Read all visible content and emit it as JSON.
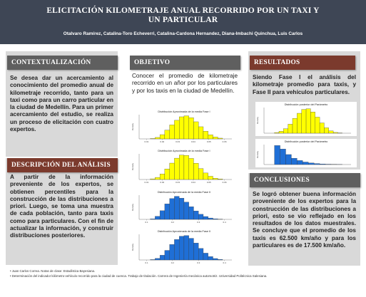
{
  "header": {
    "title": "ELICITACIÓN KILOMETRAJE ANUAL RECORRIDO POR UN TAXI Y UN PARTICULAR",
    "authors": "Otalvaro Ramírez, Catalina-Toro Echeverri, Catalina-Cardona Hernandez, Diana-Imbachi Quinchua, Luis Carlos"
  },
  "sections": {
    "contextualizacion": {
      "heading": "CONTEXTUALIZACIÓN",
      "body": "Se desea dar un acercamiento al conocimiento del promedio anual de kilometraje recorrido, tanto para un taxi como para un carro particular en la ciudad de Medellín. Para un primer acercamiento del estudio, se realiza un proceso de elicitación con cuatro expertos."
    },
    "descripcion": {
      "heading": "DESCRIPCIÓN DEL ANÁLISIS",
      "body": "A partir de la información preveniente de los expertos, se obtienen percentiles para la construcción de las distribuciones a priori. Luego, se toma una muestra de cada población, tanto para taxis como para particulares. Con el fin de actualizar la información, y construir distribuciones posteriores."
    },
    "objetivo": {
      "heading": "OBJETIVO",
      "body": "Conocer el promedio de kilometraje recorrido en un añor por los particulares y por los taxis en la ciudad de Medellín."
    },
    "resultados": {
      "heading": "RESULTADOS",
      "body": "Siendo Fase I el análisis del kilometraje promedio para taxis, y Fase II para vehículos particulares."
    },
    "conclusiones": {
      "heading": "CONCLUSIONES",
      "body": "Se logró obtener buena información proveniente de los expertos para la construcción de las distribuciones a priori, esto se vio reflejado en los resultados de los datos muestrales. Se concluye que el promedio de los taxis es 62.500 km/año y para los particulares es de 17.500 km/año."
    }
  },
  "references": [
    "Juan Carlos Correa. Notas de clase: Estadística Bayesiana.",
    "Determinación del indicador kilómetro-vehículo recorrido para la ciudad de cuenca. Trabajo de titulación. Carrera de Ingeniería mecánica automotriz. Universidad Politécnica Salesiana."
  ],
  "colors": {
    "header_bg": "#3e4655",
    "heading_gray": "#5f5f5f",
    "heading_brown": "#7b3a2d",
    "panel_bg": "#d9d9d9",
    "yellow_bars": "#ffff00",
    "blue_bars": "#1f6fd6"
  },
  "chart_data": [
    {
      "type": "bar",
      "title": "Distribución Aproximada de la media Fase I",
      "ylabel": "Density",
      "xlabel": "",
      "color": "yellow",
      "tick_labels": [
        "0.01",
        "0.02",
        "0.03",
        "0.04",
        "0.05",
        "0.06"
      ],
      "values": [
        0.3,
        1.2,
        3.5,
        7.2,
        11.5,
        15.3,
        18.2,
        19.0,
        17.4,
        14.1,
        10.0,
        6.3,
        3.4,
        1.6,
        0.6
      ]
    },
    {
      "type": "bar",
      "title": "Distribución Aproximada de la media Fase I",
      "ylabel": "Density",
      "xlabel": "",
      "color": "yellow",
      "tick_labels": [
        "0.01",
        "0.02",
        "0.03",
        "0.04",
        "0.05",
        "0.06"
      ],
      "values": [
        0.5,
        1.6,
        4.2,
        8.1,
        12.6,
        16.4,
        18.8,
        18.5,
        16.2,
        12.5,
        8.4,
        5.0,
        2.5,
        1.0,
        0.4
      ]
    },
    {
      "type": "bar",
      "title": "Distribución Aproximada de la media Fase II",
      "ylabel": "Density",
      "xlabel": "",
      "color": "blue",
      "tick_labels": [
        "0.1",
        "0.2",
        "0.3",
        "0.4"
      ],
      "values": [
        0.4,
        2.5,
        7.0,
        12.5,
        16.8,
        18.6,
        17.1,
        13.9,
        10.2,
        6.8,
        4.1,
        2.3,
        1.1,
        0.5,
        0.2
      ]
    },
    {
      "type": "bar",
      "title": "Distribución Aproximada de la media Fase II",
      "ylabel": "Density",
      "xlabel": "",
      "color": "blue",
      "tick_labels": [
        "0.1",
        "0.2",
        "0.3",
        "0.4"
      ],
      "values": [
        0.3,
        1.2,
        3.6,
        7.3,
        11.8,
        15.6,
        18.1,
        18.6,
        16.5,
        12.9,
        8.8,
        5.2,
        2.6,
        1.1,
        0.4
      ]
    },
    {
      "type": "bar",
      "title": "Distribución posterior del Parámetro",
      "ylabel": "Density",
      "xlabel": "",
      "color": "yellow",
      "tick_labels": [],
      "values": [
        0.5,
        1.5,
        3.5,
        7.0,
        11.5,
        15.5,
        18.5,
        19.0,
        16.5,
        12.5,
        8.0,
        4.2,
        1.8,
        0.6,
        0.2
      ]
    },
    {
      "type": "bar",
      "title": "Distribución posterior del Parámetro",
      "ylabel": "Density",
      "xlabel": "",
      "color": "blue",
      "tick_labels": [],
      "values": [
        19.0,
        15.5,
        10.0,
        6.3,
        4.0,
        2.5,
        1.6,
        1.0,
        0.6,
        0.35,
        0.2,
        0.1
      ]
    }
  ]
}
